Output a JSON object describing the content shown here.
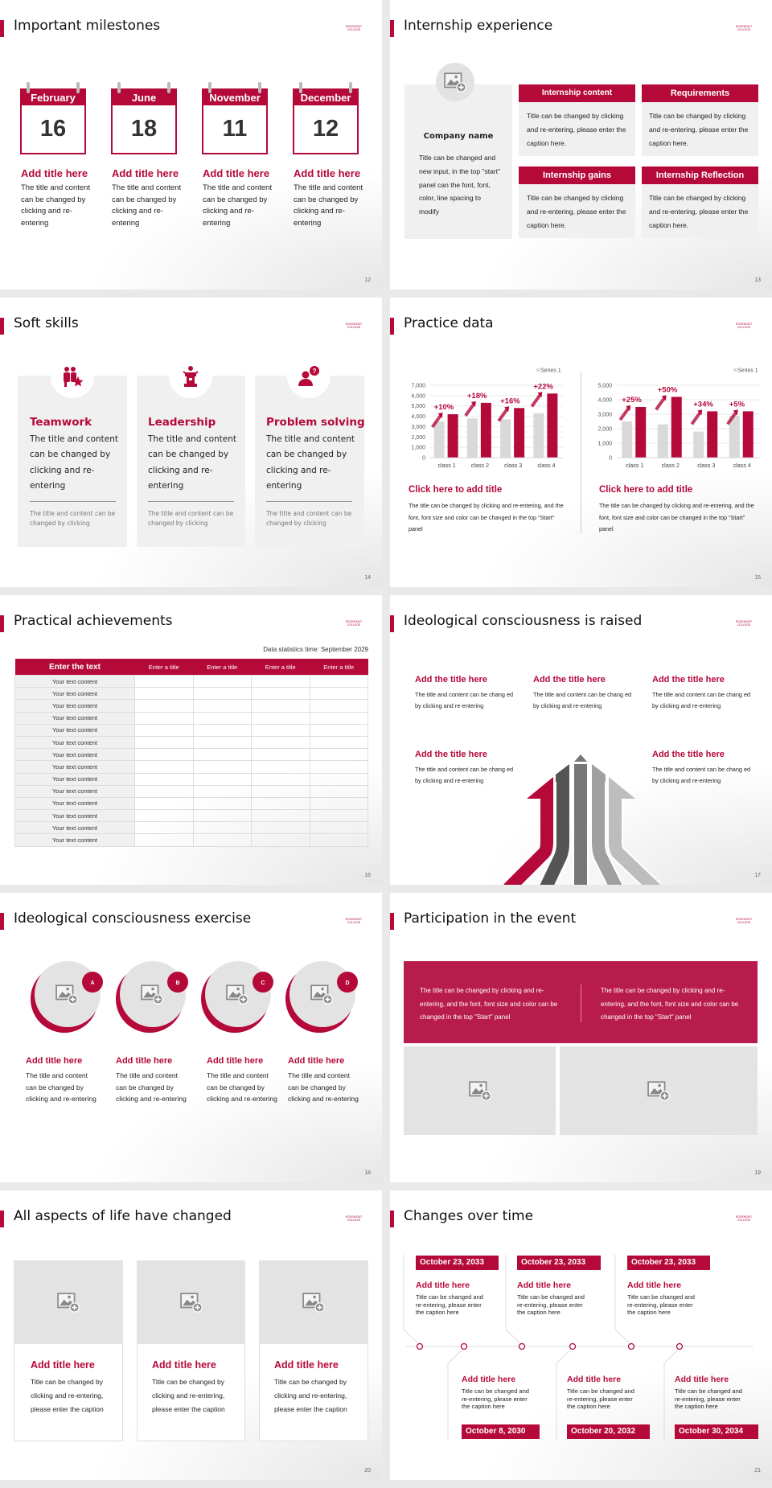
{
  "logo_text": "ROSEMONT COLLEGE",
  "accent_color": "#b5093a",
  "slides": {
    "s12": {
      "title": "Important milestones",
      "page": "12",
      "items": [
        {
          "month": "February",
          "day": "16",
          "heading": "Add title here",
          "body": "The title and content can be changed by clicking and re-entering"
        },
        {
          "month": "June",
          "day": "18",
          "heading": "Add title here",
          "body": "The title and content can be changed by clicking and re-entering"
        },
        {
          "month": "November",
          "day": "11",
          "heading": "Add title here",
          "body": "The title and content can be changed by clicking and re-entering"
        },
        {
          "month": "December",
          "day": "12",
          "heading": "Add title here",
          "body": "The title and content can be changed by clicking and re-entering"
        }
      ]
    },
    "s13": {
      "title": "Internship experience",
      "page": "13",
      "company": {
        "name": "Company name",
        "body": "Title can be changed and new input, in the top \"start\" panel can the font, font, color, line spacing to modify"
      },
      "boxes": [
        {
          "heading": "Internship content",
          "body": "Title can be changed by clicking and re-entering, please enter the caption here."
        },
        {
          "heading": "Requirements",
          "body": "Title can be changed by clicking and re-entering, please enter the caption here."
        },
        {
          "heading": "Internship gains",
          "body": "Title can be changed by clicking and re-entering, please enter the caption here."
        },
        {
          "heading": "Internship Reflection",
          "body": "Title can be changed by clicking and re-entering, please enter the caption here."
        }
      ]
    },
    "s14": {
      "title": "Soft skills",
      "page": "14",
      "cards": [
        {
          "icon": "teamwork-icon",
          "heading": "Teamwork",
          "body": "The title and content can be changed by clicking and re-entering",
          "note": "The title and content can be changed by clicking"
        },
        {
          "icon": "leadership-icon",
          "heading": "Leadership",
          "body": "The title and content can be changed by clicking and re-entering",
          "note": "The title and content can be changed by clicking"
        },
        {
          "icon": "problem-solving-icon",
          "heading": "Problem solving",
          "body": "The title and content can be changed by clicking and re-entering",
          "note": "The title and content can be changed by clicking"
        }
      ]
    },
    "s15": {
      "title": "Practice data",
      "page": "15",
      "captions": [
        {
          "heading": "Click here to add title",
          "body": "The title can be changed by clicking and re-entering, and the font, font size and color can be changed in the top \"Start\" panel"
        },
        {
          "heading": "Click here to add title",
          "body": "The title can be changed by clicking and re-entering, and the font, font size and color can be changed in the top \"Start\" panel"
        }
      ]
    },
    "s16": {
      "title": "Practical achievements",
      "page": "16",
      "stat_time": "Data statistics time: September 2029",
      "headers": [
        "Enter the text",
        "Enter a title",
        "Enter a title",
        "Enter a title",
        "Enter a title"
      ],
      "rows": [
        "Your text content",
        "Your text content",
        "Your text content",
        "Your text content",
        "Your text content",
        "Your text content",
        "Your text content",
        "Your text content",
        "Your text content",
        "Your text content",
        "Your text content",
        "Your text content",
        "Your text content",
        "Your text content"
      ]
    },
    "s17": {
      "title": "Ideological consciousness is raised",
      "page": "17",
      "items": [
        {
          "heading": "Add the title here",
          "body": "The title and content can be chang ed by clicking and re-entering"
        },
        {
          "heading": "Add the title here",
          "body": "The title and content can be chang ed by clicking and re-entering"
        },
        {
          "heading": "Add the title here",
          "body": "The title and content can be chang ed by clicking and re-entering"
        },
        {
          "heading": "Add the title here",
          "body": "The title and content can be chang ed by clicking and re-entering"
        },
        {
          "heading": "Add the title here",
          "body": "The title and content can be chang ed by clicking and re-entering"
        }
      ]
    },
    "s18": {
      "title": "Ideological consciousness exercise",
      "page": "18",
      "items": [
        {
          "badge": "A",
          "heading": "Add title here",
          "body": "The title and content can be changed by clicking and re-entering"
        },
        {
          "badge": "B",
          "heading": "Add title here",
          "body": "The title and content can be changed by clicking and re-entering"
        },
        {
          "badge": "C",
          "heading": "Add title here",
          "body": "The title and content can be changed by clicking and re-entering"
        },
        {
          "badge": "D",
          "heading": "Add title here",
          "body": "The title and content can be changed by clicking and re-entering"
        }
      ]
    },
    "s19": {
      "title": "Participation in the event",
      "page": "19",
      "texts": [
        "The title can be changed by clicking and re-entering, and the font, font size and color can be changed in the top \"Start\" panel",
        "The title can be changed by clicking and re-entering, and the font, font size and color can be changed in the top \"Start\" panel"
      ]
    },
    "s20": {
      "title": "All aspects of life have changed",
      "page": "20",
      "cards": [
        {
          "heading": "Add title here",
          "body": "Title can be changed by clicking and re-entering, please enter the caption"
        },
        {
          "heading": "Add title here",
          "body": "Title can be changed by clicking and re-entering, please enter the caption"
        },
        {
          "heading": "Add title here",
          "body": "Title can be changed by clicking and re-entering, please enter the caption"
        }
      ]
    },
    "s21": {
      "title": "Changes over time",
      "page": "21",
      "top": [
        {
          "date": "October 23, 2033",
          "heading": "Add title here",
          "body": "Title can be changed and re-entering, please enter the caption here"
        },
        {
          "date": "October 23, 2033",
          "heading": "Add title here",
          "body": "Title can be changed and re-entering, please enter the caption here"
        },
        {
          "date": "October 23, 2033",
          "heading": "Add title here",
          "body": "Title can be changed and re-entering, please enter the caption here"
        }
      ],
      "bottom": [
        {
          "date": "October 8, 2030",
          "heading": "Add title here",
          "body": "Title can be changed and re-entering, please enter the caption here"
        },
        {
          "date": "October 20, 2032",
          "heading": "Add title here",
          "body": "Title can be changed and re-entering, please enter the caption here"
        },
        {
          "date": "October 30, 2034",
          "heading": "Add title here",
          "body": "Title can be changed and re-entering, please enter the caption here"
        }
      ]
    }
  },
  "chart_data": [
    {
      "type": "bar",
      "categories": [
        "class 1",
        "class 2",
        "class 3",
        "class 4"
      ],
      "series": [
        {
          "name": "Series 1",
          "color": "#d9d9d9",
          "values": [
            3500,
            3800,
            3700,
            4300
          ]
        },
        {
          "color": "#b5093a",
          "values": [
            4200,
            5300,
            4800,
            6200
          ]
        }
      ],
      "annotations": [
        "+10%",
        "+18%",
        "+16%",
        "+22%"
      ],
      "ylim": [
        0,
        7000
      ],
      "yticks": [
        "0",
        "1,000",
        "2,000",
        "3,000",
        "4,000",
        "5,000",
        "6,000",
        "7,000"
      ],
      "grid": true,
      "legend": "top-right"
    },
    {
      "type": "bar",
      "categories": [
        "class 1",
        "class 2",
        "class 3",
        "class 4"
      ],
      "series": [
        {
          "name": "Series 1",
          "color": "#d9d9d9",
          "values": [
            2500,
            2300,
            1800,
            2900
          ]
        },
        {
          "color": "#b5093a",
          "values": [
            3500,
            4200,
            3200,
            3200
          ]
        }
      ],
      "annotations": [
        "+25%",
        "+50%",
        "+34%",
        "+5%"
      ],
      "ylim": [
        0,
        5000
      ],
      "yticks": [
        "0",
        "1,000",
        "2,000",
        "3,000",
        "4,000",
        "5,000"
      ],
      "grid": true,
      "legend": "top-right"
    }
  ]
}
